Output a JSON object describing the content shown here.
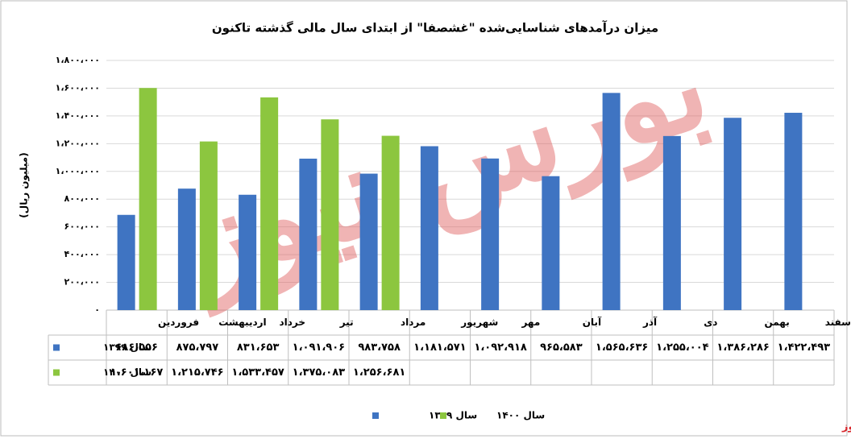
{
  "chart_data": {
    "type": "bar",
    "title": "میزان درآمدهای شناسایی‌شده \"غشصفا\" از ابتدای سال مالی گذشته تاکنون",
    "y_label": "(میلیون ریال)",
    "watermark": "بورس نیوز",
    "source": "بورس نیوز",
    "categories": [
      "فروردین",
      "اردیبهشت",
      "خرداد",
      "تیر",
      "مرداد",
      "شهریور",
      "مهر",
      "آبان",
      "آذر",
      "دی",
      "بهمن",
      "اسفند"
    ],
    "series": [
      {
        "name": "سال ۱۳۹۹",
        "color": "#3f74c2",
        "values": [
          686556,
          875797,
          831653,
          1091906,
          983758,
          1181571,
          1092918,
          965583,
          1565636,
          1255004,
          1386286,
          1422493
        ],
        "value_labels": [
          "۶۸۶،۵۵۶",
          "۸۷۵،۷۹۷",
          "۸۳۱،۶۵۳",
          "۱،۰۹۱،۹۰۶",
          "۹۸۳،۷۵۸",
          "۱،۱۸۱،۵۷۱",
          "۱،۰۹۲،۹۱۸",
          "۹۶۵،۵۸۳",
          "۱،۵۶۵،۶۳۶",
          "۱،۲۵۵،۰۰۴",
          "۱،۳۸۶،۲۸۶",
          "۱،۴۲۲،۴۹۳"
        ]
      },
      {
        "name": "سال ۱۴۰۰",
        "color": "#8cc63f",
        "values": [
          1601167,
          1215746,
          1533457,
          1375083,
          1256681,
          null,
          null,
          null,
          null,
          null,
          null,
          null
        ],
        "value_labels": [
          "۱،۶۰۱،۱۶۷",
          "۱،۲۱۵،۷۴۶",
          "۱،۵۳۳،۴۵۷",
          "۱،۳۷۵،۰۸۳",
          "۱،۲۵۶،۶۸۱",
          null,
          null,
          null,
          null,
          null,
          null,
          null
        ]
      }
    ],
    "ylim": [
      0,
      1800000
    ],
    "yticks": [
      {
        "value": 0,
        "label": "۰"
      },
      {
        "value": 200000,
        "label": "۲۰۰،۰۰۰"
      },
      {
        "value": 400000,
        "label": "۴۰۰،۰۰۰"
      },
      {
        "value": 600000,
        "label": "۶۰۰،۰۰۰"
      },
      {
        "value": 800000,
        "label": "۸۰۰،۰۰۰"
      },
      {
        "value": 1000000,
        "label": "۱،۰۰۰،۰۰۰"
      },
      {
        "value": 1200000,
        "label": "۱،۲۰۰،۰۰۰"
      },
      {
        "value": 1400000,
        "label": "۱،۴۰۰،۰۰۰"
      },
      {
        "value": 1600000,
        "label": "۱،۶۰۰،۰۰۰"
      },
      {
        "value": 1800000,
        "label": "۱،۸۰۰،۰۰۰"
      }
    ],
    "grid": true,
    "legend": "bottom"
  }
}
